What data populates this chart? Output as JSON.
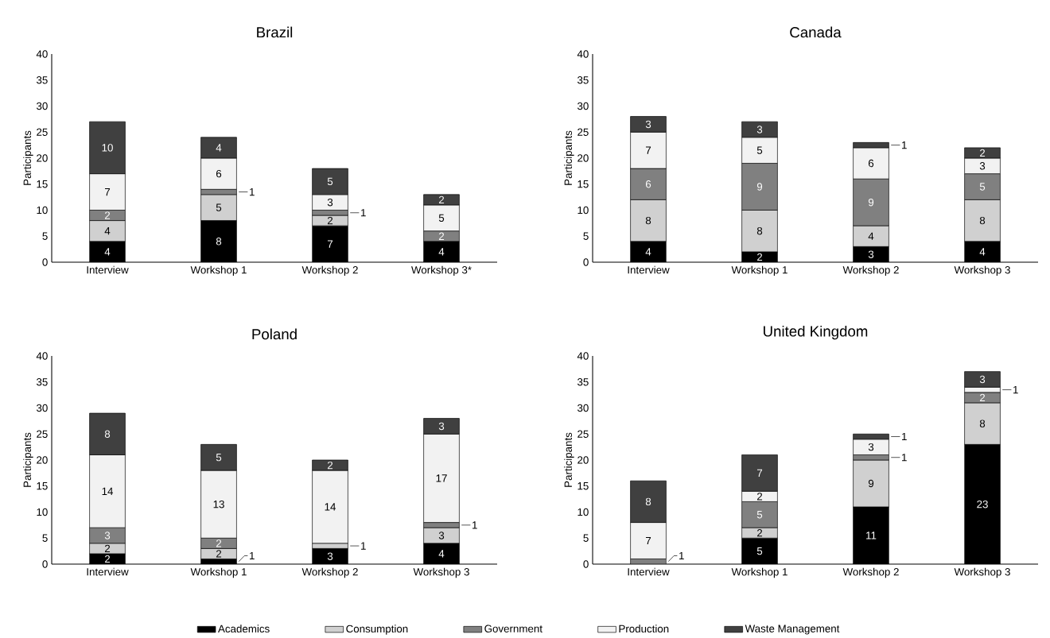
{
  "chart_data": [
    {
      "type": "bar",
      "title": "Brazil",
      "ylabel": "Participants",
      "stacked": true,
      "data_labels": true,
      "ylim": [
        0,
        40
      ],
      "yticks": [
        0,
        5,
        10,
        15,
        20,
        25,
        30,
        35,
        40
      ],
      "categories": [
        "Interview",
        "Workshop 1",
        "Workshop 2",
        "Workshop 3*"
      ],
      "series": [
        {
          "color": "#000000",
          "values": [
            4,
            8,
            7,
            4
          ]
        },
        {
          "color": "#d0d0d0",
          "values": [
            4,
            5,
            2,
            null
          ]
        },
        {
          "color": "#808080",
          "values": [
            2,
            1,
            1,
            2
          ]
        },
        {
          "color": "#f2f2f2",
          "values": [
            7,
            6,
            3,
            5
          ]
        },
        {
          "color": "#404040",
          "values": [
            10,
            4,
            5,
            2
          ]
        }
      ]
    },
    {
      "type": "bar",
      "title": "Canada",
      "ylabel": "Participants",
      "stacked": true,
      "data_labels": true,
      "ylim": [
        0,
        40
      ],
      "yticks": [
        0,
        5,
        10,
        15,
        20,
        25,
        30,
        35,
        40
      ],
      "categories": [
        "Interview",
        "Workshop 1",
        "Workshop 2",
        "Workshop 3"
      ],
      "series": [
        {
          "color": "#000000",
          "values": [
            4,
            2,
            3,
            4
          ]
        },
        {
          "color": "#d0d0d0",
          "values": [
            8,
            8,
            4,
            8
          ]
        },
        {
          "color": "#808080",
          "values": [
            6,
            9,
            9,
            5
          ]
        },
        {
          "color": "#f2f2f2",
          "values": [
            7,
            5,
            6,
            3
          ]
        },
        {
          "color": "#404040",
          "values": [
            3,
            3,
            1,
            2
          ]
        }
      ]
    },
    {
      "type": "bar",
      "title": "Poland",
      "ylabel": "Participants",
      "stacked": true,
      "data_labels": true,
      "legend": "bottom",
      "ylim": [
        0,
        40
      ],
      "yticks": [
        0,
        5,
        10,
        15,
        20,
        25,
        30,
        35,
        40
      ],
      "categories": [
        "Interview",
        "Workshop 1",
        "Workshop 2",
        "Workshop 3"
      ],
      "series": [
        {
          "name": "Academics",
          "color": "#000000",
          "values": [
            2,
            1,
            3,
            4
          ]
        },
        {
          "name": "Consumption",
          "color": "#d0d0d0",
          "values": [
            2,
            2,
            1,
            3
          ]
        },
        {
          "name": "Government",
          "color": "#808080",
          "values": [
            3,
            2,
            null,
            1
          ]
        },
        {
          "name": "Production",
          "color": "#f2f2f2",
          "values": [
            14,
            13,
            14,
            17
          ]
        },
        {
          "name": "Waste Management",
          "color": "#404040",
          "values": [
            8,
            5,
            2,
            3
          ]
        }
      ]
    },
    {
      "type": "bar",
      "title": "United Kingdom",
      "ylabel": "Participants",
      "stacked": true,
      "data_labels": true,
      "ylim": [
        0,
        40
      ],
      "yticks": [
        0,
        5,
        10,
        15,
        20,
        25,
        30,
        35,
        40
      ],
      "categories": [
        "Interview",
        "Workshop 1",
        "Workshop 2",
        "Workshop 3"
      ],
      "series": [
        {
          "color": "#000000",
          "values": [
            null,
            5,
            11,
            23
          ]
        },
        {
          "color": "#d0d0d0",
          "values": [
            null,
            2,
            9,
            8
          ]
        },
        {
          "color": "#808080",
          "values": [
            1,
            5,
            1,
            2
          ]
        },
        {
          "color": "#f2f2f2",
          "values": [
            7,
            2,
            3,
            1
          ]
        },
        {
          "color": "#404040",
          "values": [
            8,
            7,
            1,
            3
          ]
        }
      ]
    }
  ]
}
